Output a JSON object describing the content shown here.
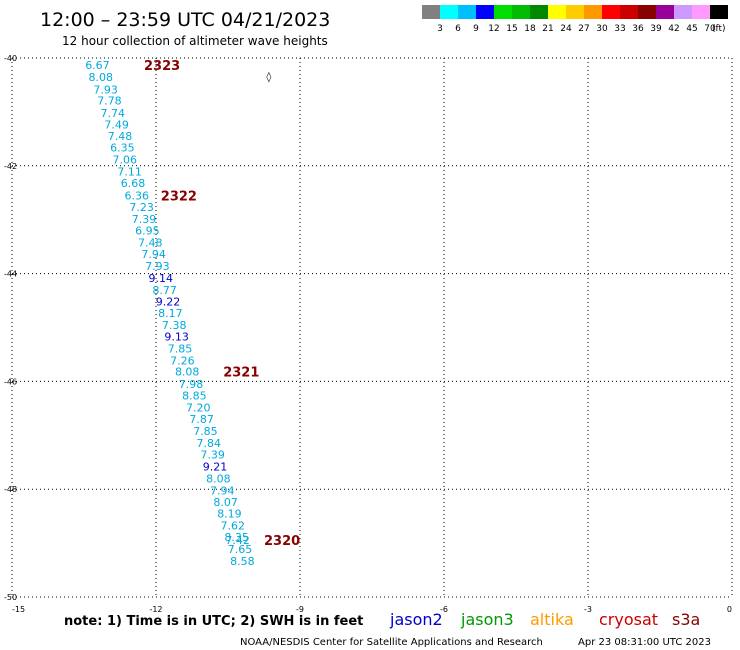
{
  "chart_data": {
    "type": "scatter",
    "title": "12:00 – 23:59 UTC 04/21/2023",
    "subtitle": "12 hour collection of altimeter wave heights",
    "xlabel": "",
    "ylabel": "",
    "xlim": [
      -15,
      0
    ],
    "ylim": [
      -50,
      -40
    ],
    "x_ticks": [
      -15,
      -12,
      -9,
      -6,
      -3,
      0
    ],
    "y_ticks": [
      -40,
      -42,
      -44,
      -46,
      -48,
      -50
    ],
    "grid": true,
    "color_scale": {
      "unit": "(ft)",
      "labels": [
        "3",
        "6",
        "9",
        "12",
        "15",
        "18",
        "21",
        "24",
        "27",
        "30",
        "33",
        "36",
        "39",
        "42",
        "45",
        "70"
      ],
      "colors": [
        "#808080",
        "#00ffff",
        "#00bfff",
        "#0000ff",
        "#00dd00",
        "#00bb00",
        "#008800",
        "#ffff00",
        "#ffcc00",
        "#ff9900",
        "#ff0000",
        "#cc0000",
        "#880000",
        "#990099",
        "#cc99ff",
        "#ff99ff",
        "#000000"
      ]
    },
    "series": [
      {
        "name": "",
        "color": "#00aadd",
        "points": [
          {
            "x": -13.22,
            "y": -40.13,
            "label": "6.67"
          },
          {
            "x": -13.15,
            "y": -40.35,
            "label": "8.08"
          },
          {
            "x": -13.05,
            "y": -40.58,
            "label": "7.93"
          },
          {
            "x": -12.97,
            "y": -40.79,
            "label": "7.78"
          },
          {
            "x": -12.9,
            "y": -41.02,
            "label": "7.74"
          },
          {
            "x": -12.82,
            "y": -41.23,
            "label": "7.49"
          },
          {
            "x": -12.75,
            "y": -41.45,
            "label": "7.48"
          },
          {
            "x": -12.7,
            "y": -41.66,
            "label": "6.35"
          },
          {
            "x": -12.65,
            "y": -41.88,
            "label": "7.06"
          },
          {
            "x": -12.55,
            "y": -42.11,
            "label": "7.11"
          },
          {
            "x": -12.48,
            "y": -42.32,
            "label": "6.68"
          },
          {
            "x": -12.4,
            "y": -42.55,
            "label": "6.36"
          },
          {
            "x": -12.3,
            "y": -42.76,
            "label": "7.23"
          },
          {
            "x": -12.25,
            "y": -42.99,
            "label": "7.39"
          },
          {
            "x": -12.18,
            "y": -43.2,
            "label": "6.95"
          },
          {
            "x": -12.12,
            "y": -43.42,
            "label": "7.48"
          },
          {
            "x": -12.05,
            "y": -43.64,
            "label": "7.94"
          },
          {
            "x": -11.97,
            "y": -43.86,
            "label": "7.93"
          },
          {
            "x": -11.82,
            "y": -44.3,
            "label": "8.77"
          },
          {
            "x": -11.7,
            "y": -44.73,
            "label": "8.17"
          },
          {
            "x": -11.62,
            "y": -44.95,
            "label": "7.38"
          },
          {
            "x": -11.5,
            "y": -45.39,
            "label": "7.85"
          },
          {
            "x": -11.45,
            "y": -45.61,
            "label": "7.26"
          },
          {
            "x": -11.35,
            "y": -45.82,
            "label": "8.08"
          },
          {
            "x": -11.27,
            "y": -46.05,
            "label": "7.98"
          },
          {
            "x": -11.2,
            "y": -46.26,
            "label": "8.85"
          },
          {
            "x": -11.12,
            "y": -46.48,
            "label": "7.20"
          },
          {
            "x": -11.05,
            "y": -46.7,
            "label": "7.87"
          },
          {
            "x": -10.97,
            "y": -46.92,
            "label": "7.85"
          },
          {
            "x": -10.9,
            "y": -47.14,
            "label": "7.84"
          },
          {
            "x": -10.82,
            "y": -47.36,
            "label": "7.39"
          },
          {
            "x": -10.7,
            "y": -47.8,
            "label": "8.08"
          },
          {
            "x": -10.62,
            "y": -48.02,
            "label": "7.94"
          },
          {
            "x": -10.55,
            "y": -48.24,
            "label": "8.07"
          },
          {
            "x": -10.47,
            "y": -48.45,
            "label": "8.19"
          },
          {
            "x": -10.4,
            "y": -48.67,
            "label": "7.62"
          },
          {
            "x": -10.32,
            "y": -48.89,
            "label": "8.35"
          },
          {
            "x": -10.3,
            "y": -48.94,
            "label": "7.42"
          },
          {
            "x": -10.25,
            "y": -49.11,
            "label": "7.65"
          },
          {
            "x": -10.2,
            "y": -49.33,
            "label": "8.58"
          }
        ]
      },
      {
        "name": "",
        "color": "#0000cc",
        "points": [
          {
            "x": -11.9,
            "y": -44.08,
            "label": "9.14"
          },
          {
            "x": -11.75,
            "y": -44.52,
            "label": "9.22"
          },
          {
            "x": -11.57,
            "y": -45.17,
            "label": "9.13"
          },
          {
            "x": -10.77,
            "y": -47.58,
            "label": "9.21"
          }
        ]
      }
    ],
    "time_labels": [
      {
        "x": -12.25,
        "y": -40.13,
        "text": "2323"
      },
      {
        "x": -11.9,
        "y": -42.55,
        "text": "2322"
      },
      {
        "x": -10.6,
        "y": -45.82,
        "text": "2321"
      },
      {
        "x": -9.75,
        "y": -48.94,
        "text": "2320"
      }
    ],
    "time_label_color": "#880000",
    "marker": {
      "x": -9.7,
      "y": -40.35,
      "text": "◊"
    },
    "note": "note:  1) Time is in UTC;  2) SWH is in feet",
    "satellites": [
      {
        "name": "jason2",
        "color": "#0000cc"
      },
      {
        "name": "jason3",
        "color": "#009900"
      },
      {
        "name": "altika",
        "color": "#ff9900"
      },
      {
        "name": "cryosat",
        "color": "#cc0000"
      },
      {
        "name": "s3a",
        "color": "#880000"
      }
    ],
    "footer_left": "NOAA/NESDIS Center for Satellite Applications and Research",
    "footer_right": "Apr 23 08:31:00 UTC 2023"
  }
}
